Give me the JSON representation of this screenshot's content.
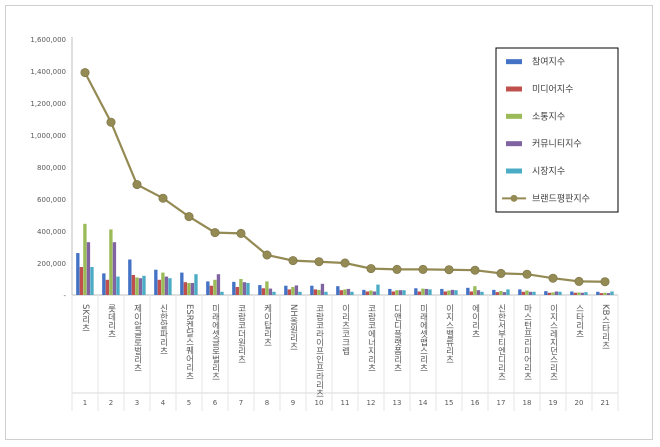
{
  "chart_data": {
    "type": "bar",
    "ylim": [
      0,
      1600000
    ],
    "yticks": [
      "-",
      "200,000",
      "400,000",
      "600,000",
      "800,000",
      "1,000,000",
      "1,200,000",
      "1,400,000",
      "1,600,000"
    ],
    "ytick_values": [
      0,
      200000,
      400000,
      600000,
      800000,
      1000000,
      1200000,
      1400000,
      1600000
    ],
    "ranks": [
      "1",
      "2",
      "3",
      "4",
      "5",
      "6",
      "7",
      "8",
      "9",
      "10",
      "11",
      "12",
      "13",
      "14",
      "15",
      "16",
      "17",
      "18",
      "19",
      "20",
      "21"
    ],
    "categories": [
      "SK리츠",
      "롯데리츠",
      "제이알글로벌리츠",
      "신한알파리츠",
      "ESR켄달스퀘어리츠",
      "미래에셋글로벌리츠",
      "코람코더원리츠",
      "케이탑리츠",
      "NH올원리츠",
      "코람코라이프인프라리츠",
      "이리츠코크렙",
      "코람코에너지리츠",
      "디앤디플랫폼리츠",
      "미래에셋맵스리츠",
      "이지스밸류리츠",
      "에이리츠",
      "신한서부티엔디리츠",
      "마스턴프리미어리츠",
      "이지스레지던스리츠",
      "스타리츠",
      "KB스타리츠"
    ],
    "series": [
      {
        "name": "참여지수",
        "color": "#4472C4",
        "values": [
          262000,
          135000,
          222000,
          158000,
          140000,
          85000,
          82000,
          62000,
          58000,
          58000,
          55000,
          32000,
          38000,
          42000,
          38000,
          45000,
          32000,
          35000,
          24000,
          22000,
          20000
        ]
      },
      {
        "name": "미디어지수",
        "color": "#C0504D",
        "values": [
          175000,
          95000,
          125000,
          95000,
          80000,
          58000,
          50000,
          42000,
          35000,
          35000,
          30000,
          22000,
          22000,
          22000,
          22000,
          22000,
          18000,
          20000,
          14000,
          14000,
          12000
        ]
      },
      {
        "name": "소통지수",
        "color": "#9BBB59",
        "values": [
          445000,
          410000,
          110000,
          140000,
          75000,
          95000,
          100000,
          85000,
          50000,
          32000,
          35000,
          28000,
          30000,
          40000,
          28000,
          55000,
          25000,
          28000,
          16000,
          16000,
          14000
        ]
      },
      {
        "name": "커뮤니티지수",
        "color": "#8064A2",
        "values": [
          330000,
          330000,
          105000,
          115000,
          75000,
          130000,
          80000,
          40000,
          60000,
          70000,
          38000,
          22000,
          30000,
          38000,
          32000,
          30000,
          18000,
          20000,
          22000,
          14000,
          12000
        ]
      },
      {
        "name": "시장지수",
        "color": "#4BACC6",
        "values": [
          175000,
          115000,
          120000,
          105000,
          130000,
          20000,
          75000,
          20000,
          20000,
          20000,
          20000,
          65000,
          30000,
          35000,
          30000,
          20000,
          35000,
          20000,
          20000,
          18000,
          22000
        ]
      }
    ],
    "line": {
      "name": "브랜드평판지수",
      "color": "#948A54",
      "values": [
        1390000,
        1080000,
        690000,
        605000,
        490000,
        390000,
        385000,
        250000,
        215000,
        208000,
        200000,
        165000,
        160000,
        160000,
        158000,
        155000,
        135000,
        130000,
        105000,
        85000,
        83000
      ]
    },
    "legend_position": "right",
    "grid": false
  }
}
